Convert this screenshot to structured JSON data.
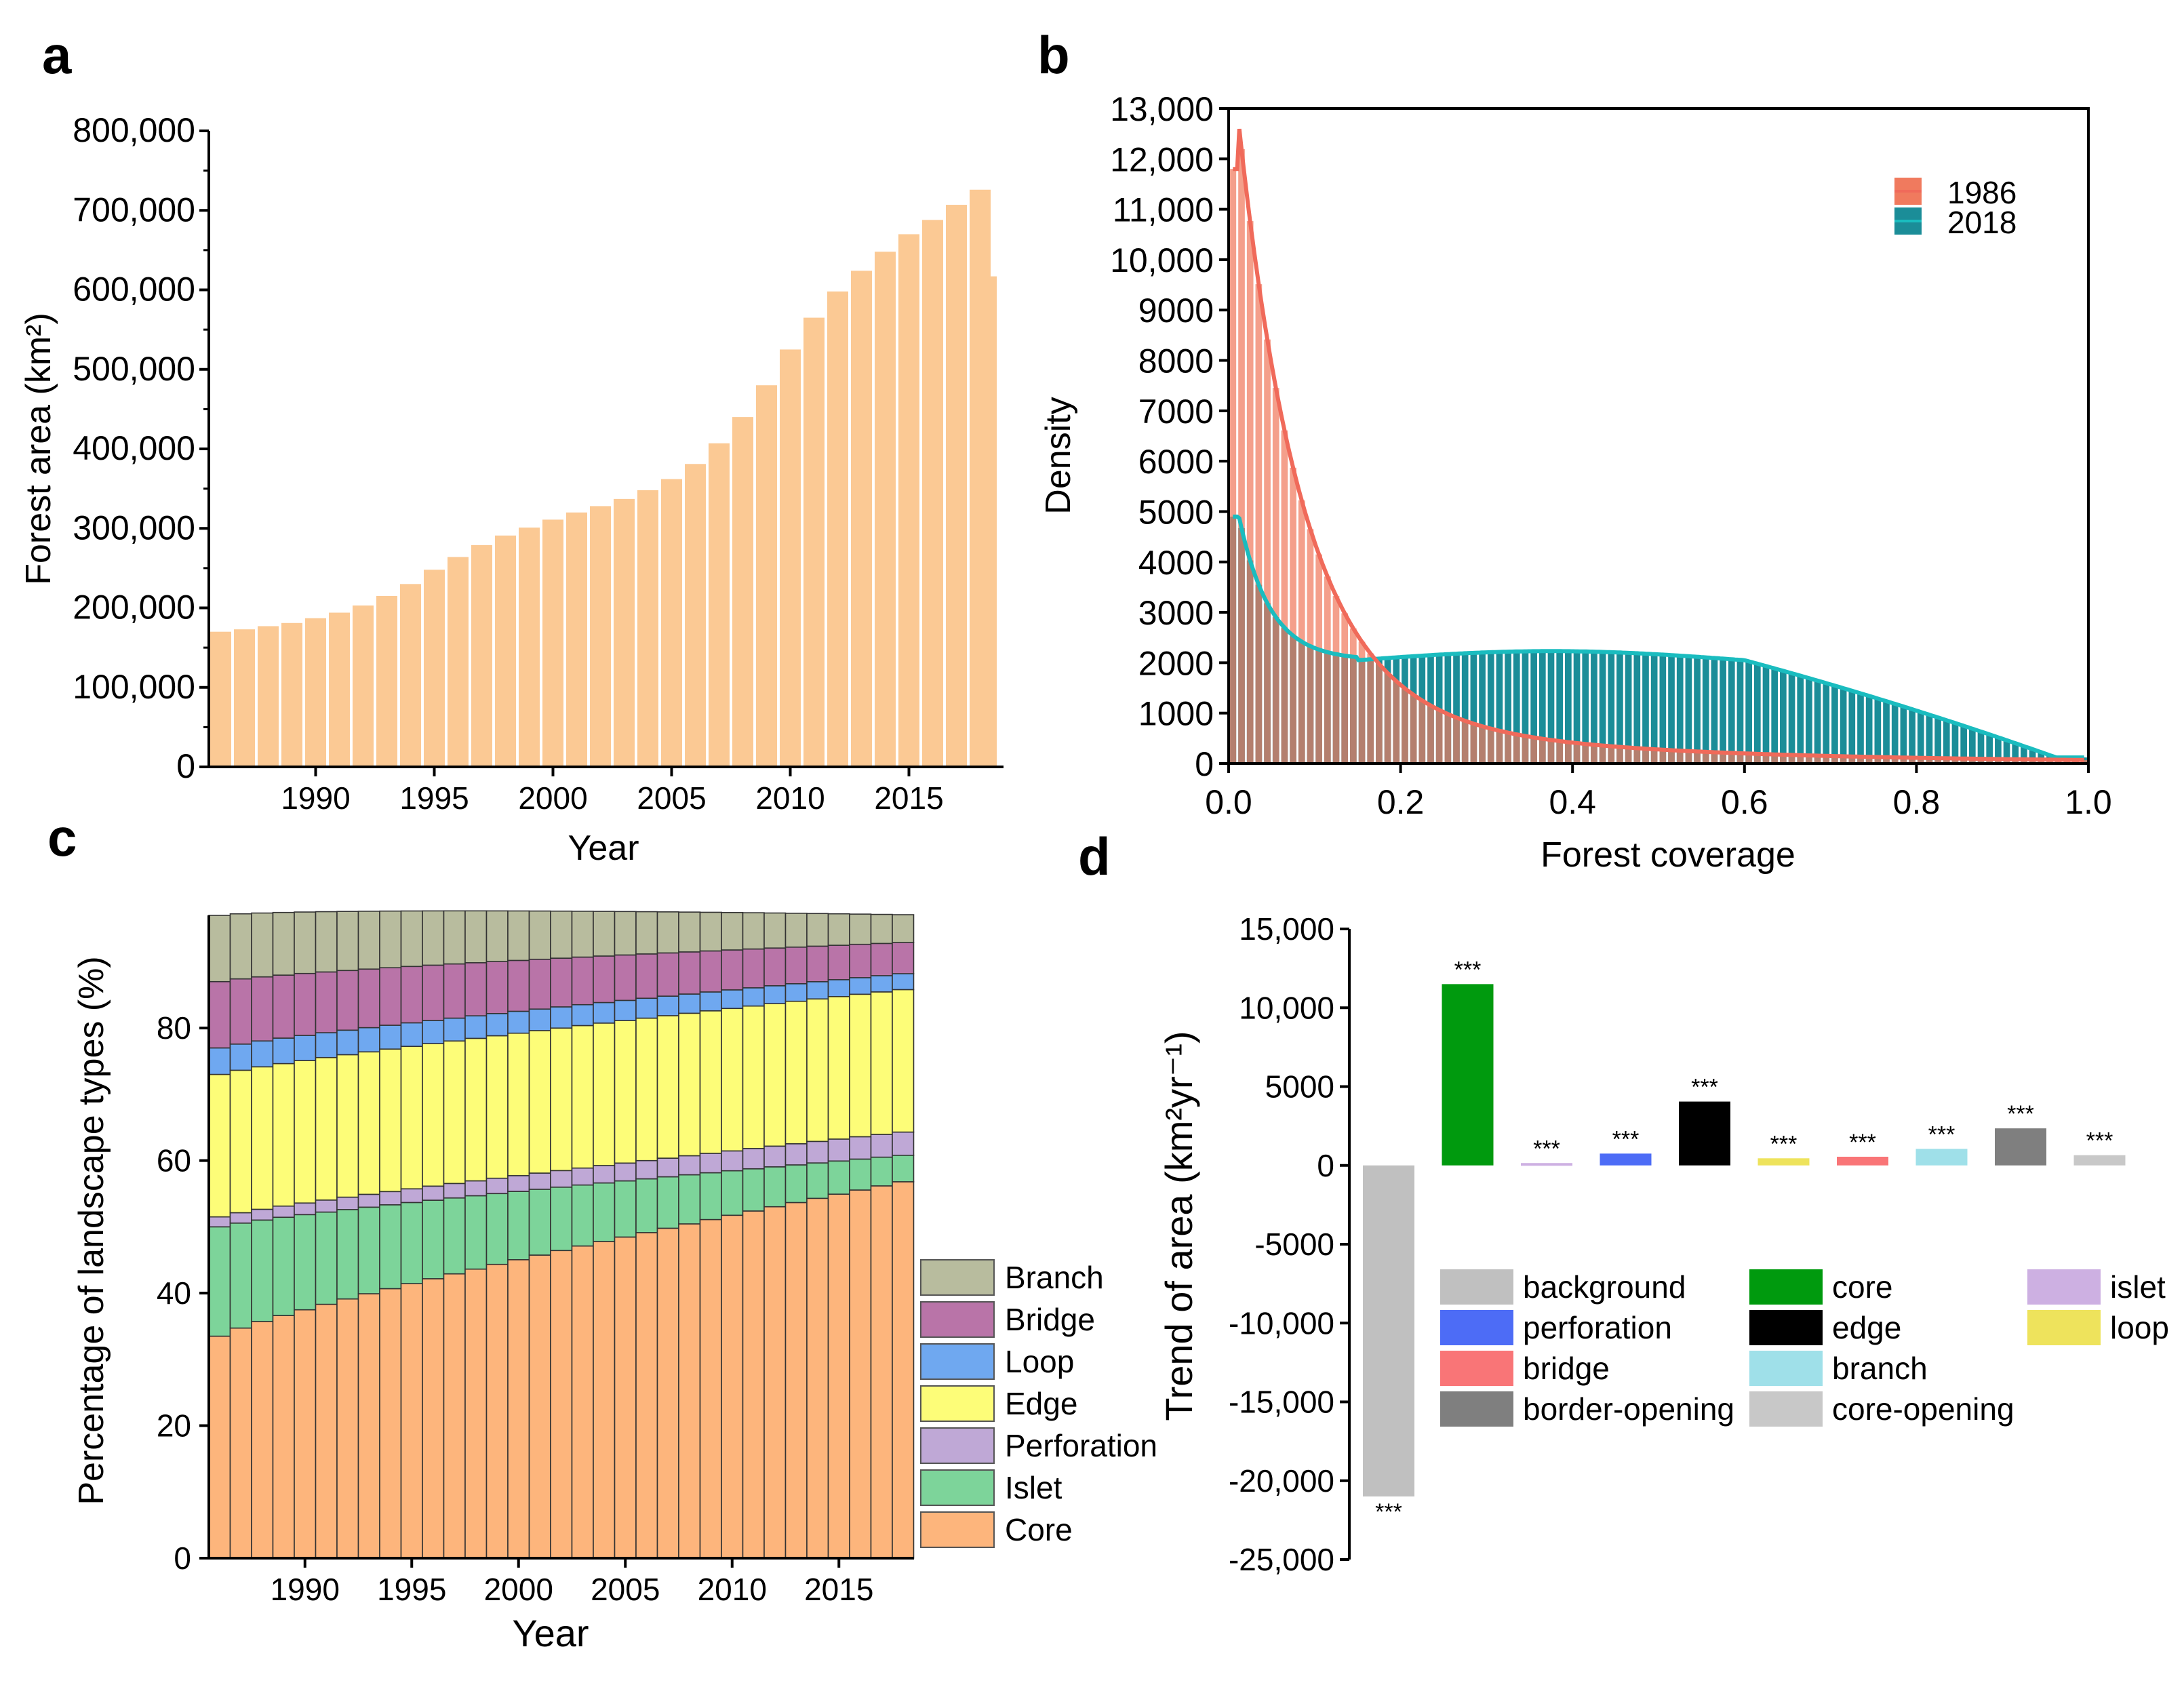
{
  "panels": [
    "a",
    "b",
    "c",
    "d"
  ],
  "chart_data": [
    {
      "id": "a",
      "type": "bar",
      "xlabel": "Year",
      "ylabel": "Forest area (km²)",
      "ylim": [
        0,
        800000
      ],
      "yticks": [
        0,
        100000,
        200000,
        300000,
        400000,
        500000,
        600000,
        700000,
        800000
      ],
      "ytick_labels": [
        "0",
        "100,000",
        "200,000",
        "300,000",
        "400,000",
        "500,000",
        "600,000",
        "700,000",
        "800,000"
      ],
      "xticks": [
        1990,
        1995,
        2000,
        2005,
        2010,
        2015
      ],
      "bar_color": "#fbc994",
      "categories": [
        1986,
        1987,
        1988,
        1989,
        1990,
        1991,
        1992,
        1993,
        1994,
        1995,
        1996,
        1997,
        1998,
        1999,
        2000,
        2001,
        2002,
        2003,
        2004,
        2005,
        2006,
        2007,
        2008,
        2009,
        2010,
        2011,
        2012,
        2013,
        2014,
        2015,
        2016,
        2017,
        2018
      ],
      "values": [
        170000,
        173000,
        177000,
        181000,
        187000,
        194000,
        203000,
        215000,
        230000,
        248000,
        264000,
        279000,
        291000,
        301000,
        311000,
        320000,
        328000,
        337000,
        348000,
        362000,
        381000,
        407000,
        440000,
        480000,
        525000,
        565000,
        598000,
        624000,
        648000,
        670000,
        688000,
        707000,
        726000
      ],
      "extra_bar": {
        "year": 2018.5,
        "value": 617000
      }
    },
    {
      "id": "b",
      "type": "bar",
      "xlabel": "Forest coverage",
      "ylabel": "Density",
      "xlim": [
        0,
        1
      ],
      "ylim": [
        0,
        13000
      ],
      "xticks": [
        0.0,
        0.2,
        0.4,
        0.6,
        0.8,
        1.0
      ],
      "xtick_labels": [
        "0.0",
        "0.2",
        "0.4",
        "0.6",
        "0.8",
        "1.0"
      ],
      "yticks": [
        0,
        1000,
        2000,
        3000,
        4000,
        5000,
        6000,
        7000,
        8000,
        9000,
        10000,
        11000,
        12000,
        13000
      ],
      "ytick_labels": [
        "0",
        "1000",
        "2000",
        "3000",
        "4000",
        "5000",
        "6000",
        "7000",
        "8000",
        "9000",
        "10,000",
        "11,000",
        "12,000",
        "13,000"
      ],
      "legend_position": "top-right",
      "series": [
        {
          "name": "1986",
          "color": "#f07a5e",
          "line_color": "#f06a5a",
          "peak": 11800,
          "shape": "decay"
        },
        {
          "name": "2018",
          "color": "#1b8d98",
          "line_color": "#1abcbf",
          "peak": 4900,
          "shape": "plateau"
        }
      ]
    },
    {
      "id": "c",
      "type": "bar",
      "stacked": true,
      "xlabel": "Year",
      "ylabel": "Percentage of landscape types  (%)",
      "ylim": [
        0,
        97
      ],
      "yticks": [
        0,
        20,
        40,
        60,
        80
      ],
      "xticks": [
        1990,
        1995,
        2000,
        2005,
        2010,
        2015
      ],
      "categories": [
        1986,
        1987,
        1988,
        1989,
        1990,
        1991,
        1992,
        1993,
        1994,
        1995,
        1996,
        1997,
        1998,
        1999,
        2000,
        2001,
        2002,
        2003,
        2004,
        2005,
        2006,
        2007,
        2008,
        2009,
        2010,
        2011,
        2012,
        2013,
        2014,
        2015,
        2016,
        2017,
        2018
      ],
      "series": [
        {
          "name": "Core",
          "color": "#fdb57c",
          "start": 33.5,
          "end": 56.8
        },
        {
          "name": "Islet",
          "color": "#7dd49a",
          "start": 16.5,
          "end": 4.0
        },
        {
          "name": "Perforation",
          "color": "#bfa8d6",
          "start": 1.5,
          "end": 3.5
        },
        {
          "name": "Edge",
          "color": "#fdfd78",
          "start": 21.5,
          "end": 21.5
        },
        {
          "name": "Loop",
          "color": "#6fa8f0",
          "start": 4.0,
          "end": 2.4
        },
        {
          "name": "Bridge",
          "color": "#b974a8",
          "start": 10.0,
          "end": 4.7
        },
        {
          "name": "Branch",
          "color": "#b8bc9e",
          "start": 10.0,
          "end": 4.2
        }
      ],
      "legend_order": [
        "Branch",
        "Bridge",
        "Loop",
        "Edge",
        "Perforation",
        "Islet",
        "Core"
      ]
    },
    {
      "id": "d",
      "type": "bar",
      "ylabel": "Trend of area (km²yr⁻¹)",
      "ylim": [
        -25000,
        15000
      ],
      "yticks": [
        -25000,
        -20000,
        -15000,
        -10000,
        -5000,
        0,
        5000,
        10000,
        15000
      ],
      "ytick_labels": [
        "-25,000",
        "-20,000",
        "-15,000",
        "-10,000",
        "-5000",
        "0",
        "5000",
        "10,000",
        "15,000"
      ],
      "categories": [
        "background",
        "core",
        "islet",
        "perforation",
        "edge",
        "loop",
        "bridge",
        "branch",
        "border-opening",
        "core-opening"
      ],
      "values": [
        -21000,
        11500,
        150,
        750,
        4050,
        450,
        550,
        1050,
        2350,
        650
      ],
      "colors": [
        "#c0c0c0",
        "#009a0e",
        "#cdb0e2",
        "#4d6cf6",
        "#000000",
        "#eee35c",
        "#f97577",
        "#9fe0e9",
        "#7f7f7f",
        "#c8c8c8"
      ],
      "significance": [
        "***",
        "***",
        "***",
        "***",
        "***",
        "***",
        "***",
        "***",
        "***",
        "***"
      ],
      "legend_columns": [
        [
          "background",
          "perforation",
          "bridge",
          "border-opening"
        ],
        [
          "core",
          "edge",
          "branch",
          "core-opening"
        ],
        [
          "islet",
          "loop"
        ]
      ]
    }
  ]
}
